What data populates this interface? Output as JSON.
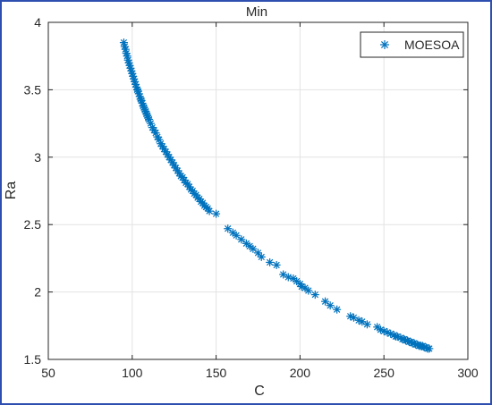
{
  "chart_data": {
    "type": "scatter",
    "title": "Min",
    "xlabel": "C",
    "ylabel": "Ra",
    "xlim": [
      50,
      300
    ],
    "ylim": [
      1.5,
      4
    ],
    "xticks": [
      50,
      100,
      150,
      200,
      250,
      300
    ],
    "yticks": [
      1.5,
      2,
      2.5,
      3,
      3.5,
      4
    ],
    "xtick_labels": [
      "50",
      "100",
      "150",
      "200",
      "250",
      "300"
    ],
    "ytick_labels": [
      "1.5",
      "2",
      "2.5",
      "3",
      "3.5",
      "4"
    ],
    "grid": true,
    "legend_position": "top-right",
    "marker": "asterisk",
    "series": [
      {
        "name": "MOESOA",
        "color": "#0072BD",
        "x": [
          95,
          95.5,
          96,
          96.5,
          97,
          97.5,
          98,
          98.5,
          99,
          99.5,
          100,
          100.5,
          101,
          101.5,
          102,
          102.5,
          103,
          103.5,
          104,
          104.5,
          105,
          105.5,
          106,
          106.5,
          107,
          107.5,
          108,
          108.5,
          109,
          109.5,
          110,
          111,
          112,
          113,
          114,
          115,
          116,
          117,
          118,
          119,
          120,
          121,
          122,
          123,
          124,
          125,
          126,
          127,
          128,
          129,
          130,
          131,
          132,
          133,
          134,
          135,
          136,
          137,
          138,
          139,
          140,
          141,
          142,
          143,
          144,
          145,
          146,
          150,
          157,
          160,
          162,
          165,
          168,
          170,
          172,
          175,
          177,
          182,
          186,
          190,
          193,
          196,
          198,
          200,
          201,
          203,
          205,
          209,
          215,
          218,
          222,
          230,
          232,
          235,
          237,
          240,
          246,
          248,
          250,
          252,
          254,
          256,
          257,
          258,
          260,
          261,
          262,
          263,
          264,
          265,
          266,
          267,
          268,
          269,
          270,
          271,
          272,
          273,
          274,
          275,
          276,
          277
        ],
        "y": [
          3.85,
          3.82,
          3.8,
          3.77,
          3.75,
          3.72,
          3.7,
          3.68,
          3.66,
          3.64,
          3.62,
          3.6,
          3.58,
          3.56,
          3.54,
          3.52,
          3.5,
          3.49,
          3.47,
          3.45,
          3.43,
          3.42,
          3.4,
          3.38,
          3.37,
          3.35,
          3.34,
          3.32,
          3.31,
          3.29,
          3.28,
          3.25,
          3.22,
          3.2,
          3.18,
          3.15,
          3.13,
          3.1,
          3.08,
          3.06,
          3.04,
          3.02,
          3,
          2.98,
          2.96,
          2.94,
          2.92,
          2.9,
          2.88,
          2.86,
          2.85,
          2.83,
          2.81,
          2.8,
          2.78,
          2.76,
          2.75,
          2.73,
          2.72,
          2.7,
          2.69,
          2.67,
          2.66,
          2.64,
          2.63,
          2.62,
          2.6,
          2.58,
          2.47,
          2.44,
          2.42,
          2.39,
          2.36,
          2.34,
          2.32,
          2.29,
          2.26,
          2.22,
          2.2,
          2.13,
          2.11,
          2.1,
          2.08,
          2.06,
          2.04,
          2.03,
          2.01,
          1.98,
          1.93,
          1.9,
          1.87,
          1.82,
          1.81,
          1.79,
          1.78,
          1.76,
          1.74,
          1.72,
          1.71,
          1.7,
          1.69,
          1.68,
          1.67,
          1.67,
          1.66,
          1.65,
          1.65,
          1.64,
          1.64,
          1.63,
          1.63,
          1.62,
          1.62,
          1.61,
          1.61,
          1.6,
          1.6,
          1.6,
          1.59,
          1.59,
          1.58,
          1.58
        ]
      }
    ]
  }
}
